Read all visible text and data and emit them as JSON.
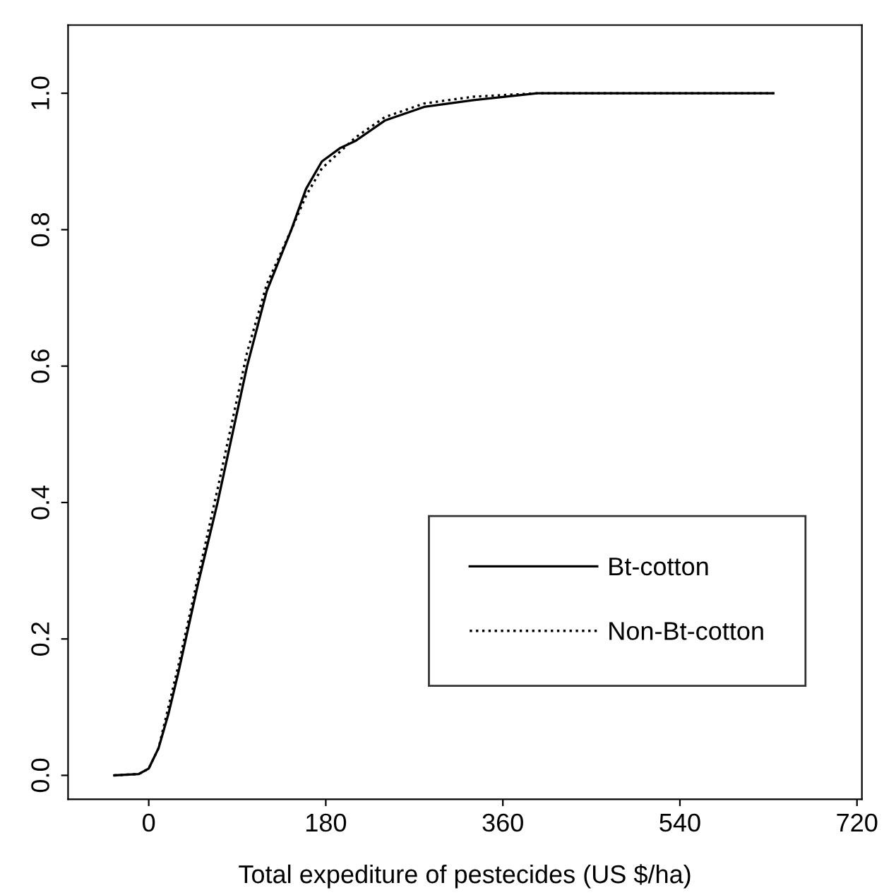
{
  "chart_data": {
    "type": "line",
    "xlabel": "Total expediture of pestecides (US $/ha)",
    "xlim": [
      -82,
      725
    ],
    "ylim": [
      -0.035,
      1.1
    ],
    "xticks": [
      0,
      180,
      360,
      540,
      720
    ],
    "yticks": [
      {
        "value": 0,
        "label": "0.0"
      },
      {
        "value": 0.2,
        "label": "0.2"
      },
      {
        "value": 0.4,
        "label": "0.4"
      },
      {
        "value": 0.6,
        "label": "0.6"
      },
      {
        "value": 0.8,
        "label": "0.8"
      },
      {
        "value": 1,
        "label": "1.0"
      }
    ],
    "grid": false,
    "legend": "bottom right",
    "marker": "none",
    "series": [
      {
        "name": "Bt-cotton",
        "color": "#000000",
        "line_style": "solid",
        "x": [
          -35,
          -10,
          0,
          10,
          20,
          30,
          50,
          70,
          100,
          120,
          145,
          160,
          176,
          195,
          210,
          240,
          280,
          330,
          395,
          500,
          635
        ],
        "values": [
          0,
          0.002,
          0.01,
          0.04,
          0.09,
          0.15,
          0.28,
          0.4,
          0.6,
          0.71,
          0.8,
          0.86,
          0.9,
          0.92,
          0.93,
          0.96,
          0.98,
          0.99,
          1.0,
          1.0,
          1.0
        ]
      },
      {
        "name": "Non-Bt-cotton",
        "color": "#000000",
        "line_style": "dotted",
        "x": [
          -35,
          -10,
          0,
          10,
          20,
          30,
          50,
          70,
          100,
          120,
          145,
          160,
          176,
          195,
          210,
          240,
          280,
          330,
          395,
          500,
          635
        ],
        "values": [
          0,
          0.002,
          0.01,
          0.04,
          0.1,
          0.16,
          0.29,
          0.42,
          0.62,
          0.72,
          0.8,
          0.85,
          0.89,
          0.915,
          0.935,
          0.965,
          0.985,
          0.995,
          1.0,
          1.0,
          1.0
        ]
      }
    ]
  }
}
